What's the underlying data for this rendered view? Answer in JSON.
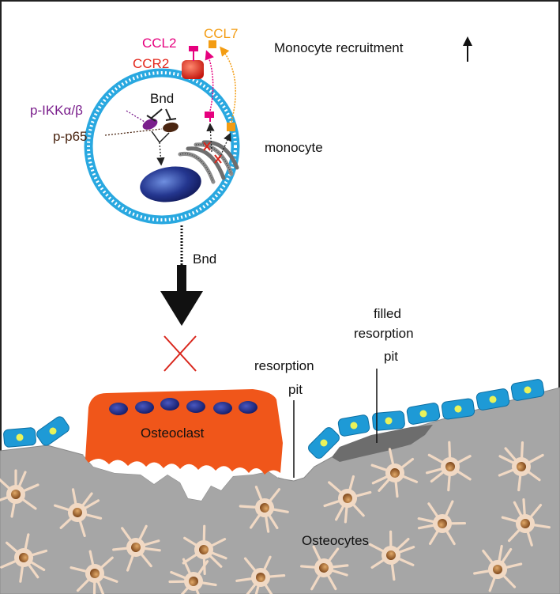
{
  "labels": {
    "ccl2": "CCL2",
    "ccl7": "CCL7",
    "ccr2": "CCR2",
    "monocyte_recruitment": "Monocyte recruitment",
    "bnd_top": "Bnd",
    "p_ikk": "p-IKKα/β",
    "p_p65": "p-p65",
    "monocyte": "monocyte",
    "bnd_arrow": "Bnd",
    "filled_line1": "filled",
    "filled_line2": "resorption",
    "filled_line3": "pit",
    "resorption_line1": "resorption",
    "resorption_line2": "pit",
    "osteoclast": "Osteoclast",
    "osteocytes": "Osteocytes"
  },
  "colors": {
    "ccl2": "#e6007e",
    "ccl7": "#f39c12",
    "ccr2": "#e3261b",
    "p_ikk": "#7a1e8c",
    "p_p65": "#4a2511",
    "membrane": "#29a8e0",
    "osteoclast": "#f0561a",
    "osteoclast_nucleus": "#1a237e",
    "bone": "#a6a6a6",
    "lining_cell": "#1e9ad6",
    "lining_nucleus": "#e9f25a",
    "osteocyte": "#f1d9c4",
    "osteocyte_nucleus": "#a0622d",
    "inhibition_x": "#d9261c"
  }
}
